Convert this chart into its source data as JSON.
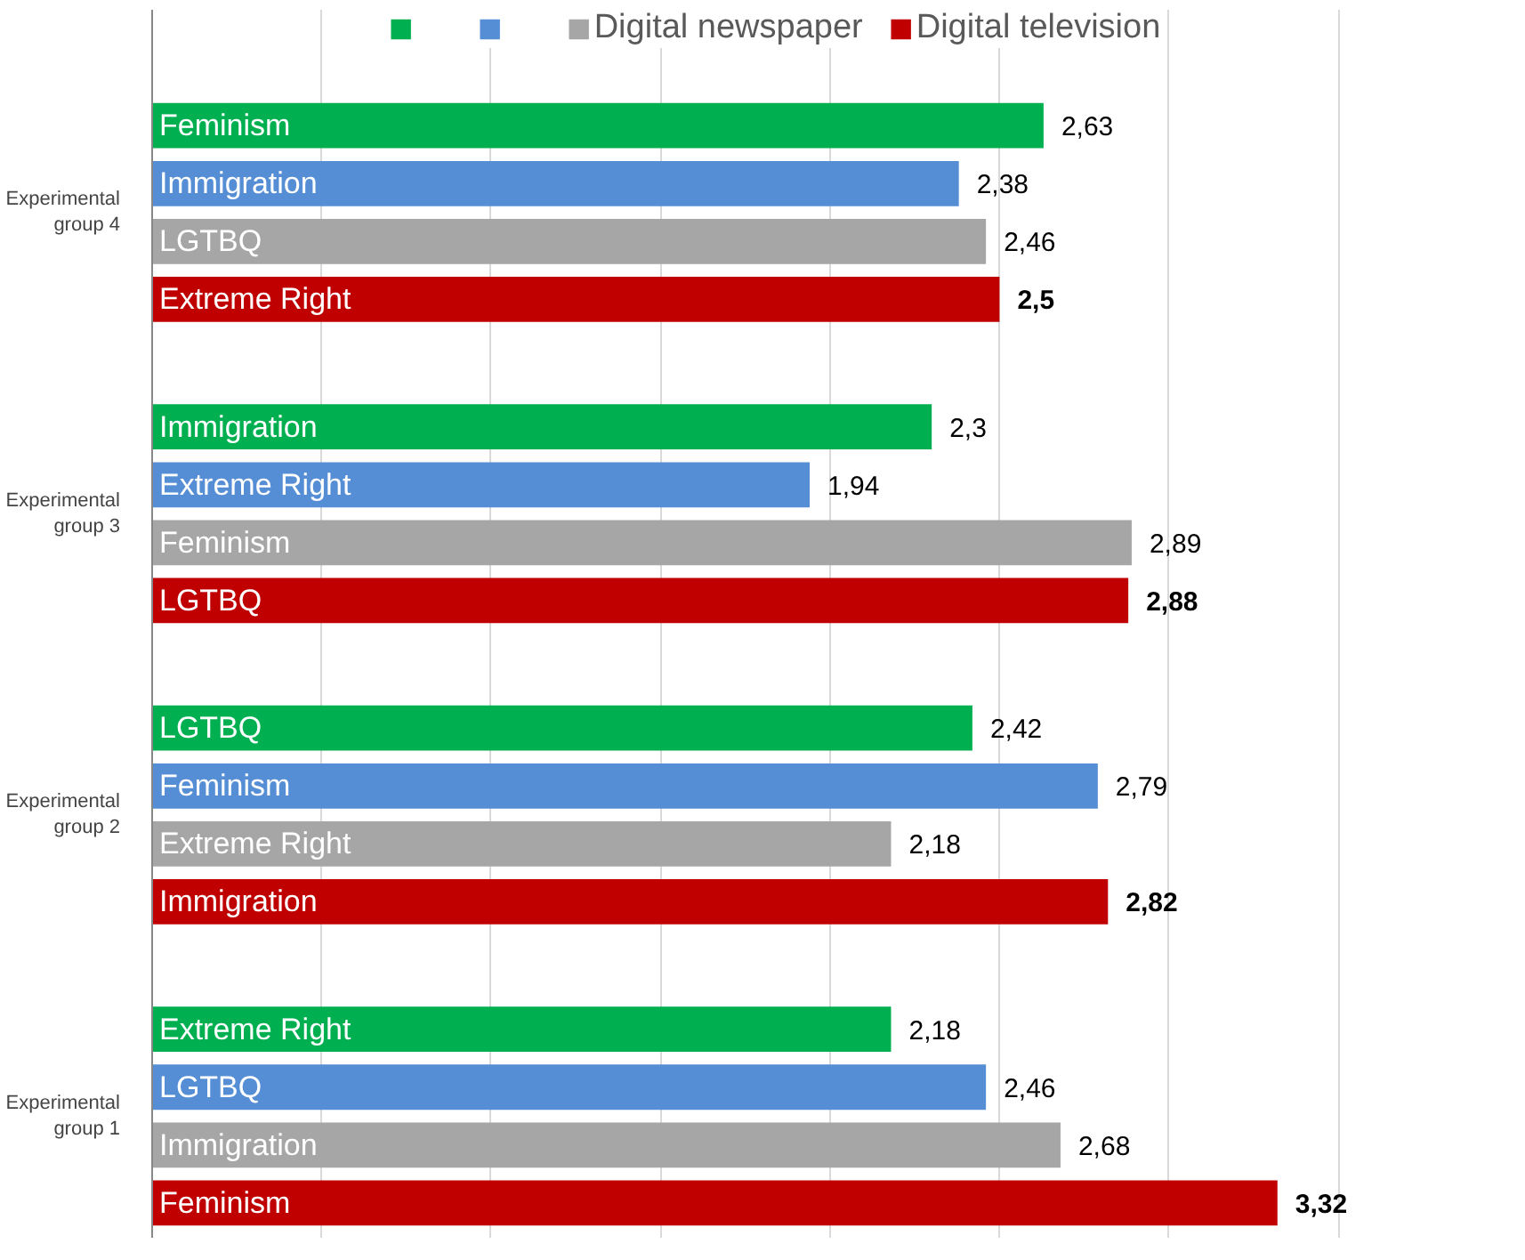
{
  "chart_data": {
    "type": "bar",
    "orientation": "horizontal",
    "categories": [
      "Experimental group 4",
      "Experimental group 3",
      "Experimental group 2",
      "Experimental group 1"
    ],
    "series": [
      {
        "color": "#00b050",
        "values": [
          2.63,
          2.3,
          2.42,
          2.18
        ],
        "value_labels": [
          "2,63",
          "2,3",
          "2,42",
          "2,18"
        ]
      },
      {
        "color": "#558ed5",
        "values": [
          2.38,
          1.94,
          2.79,
          2.46
        ],
        "value_labels": [
          "2,38",
          "1,94",
          "2,79",
          "2,46"
        ]
      },
      {
        "name": "Digital newspaper",
        "color": "#a6a6a6",
        "values": [
          2.46,
          2.89,
          2.18,
          2.68
        ],
        "value_labels": [
          "2,46",
          "2,89",
          "2,18",
          "2,68"
        ]
      },
      {
        "name": "Digital television",
        "color": "#c00000",
        "values": [
          2.5,
          2.88,
          2.82,
          3.32
        ],
        "value_labels": [
          "2,5",
          "2,88",
          "2,82",
          "3,32"
        ]
      }
    ],
    "annotations": [
      "Feminism",
      "Immigration",
      "LGTBQ",
      "Extreme Right",
      "Immigration",
      "Extreme Right",
      "Feminism",
      "LGTBQ",
      "LGTBQ",
      "Feminism",
      "Extreme Right",
      "Immigration",
      "Extreme Right",
      "LGTBQ",
      "Immigration",
      "Feminism"
    ],
    "xticks": [
      {
        "value": 0,
        "label": null
      },
      {
        "value": 0.5,
        "label": null
      },
      {
        "value": 1,
        "label": null
      },
      {
        "value": 1.5,
        "label": null
      },
      {
        "value": 2,
        "label": null
      },
      {
        "value": 2.5,
        "label": null
      },
      {
        "value": 3,
        "label": null
      },
      {
        "value": 3.5,
        "label": null
      }
    ],
    "grid": "x",
    "legend": "top",
    "tick_labels": "y"
  }
}
